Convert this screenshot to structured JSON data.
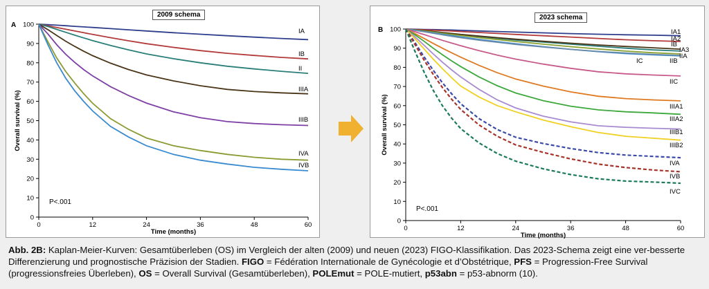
{
  "caption": {
    "label": "Abb. 2B:",
    "text_1": " Kaplan-Meier-Kurven: Gesamtüberleben (OS) im Vergleich der alten (2009) und neuen (2023) FIGO-Klassifikation. Das 2023-Schema zeigt eine ver-besserte Differenzierung und prognostische Präzision der Stadien. ",
    "abbr_figo": "FIGO",
    "text_2": " = Fédération Internationale de Gynécologie et d’Obstétrique, ",
    "abbr_pfs": "PFS",
    "text_3": " = Progression-Free Survival (progressionsfreies Überleben), ",
    "abbr_os": "OS",
    "text_4": " = Overall Survival (Gesamtüberleben), ",
    "abbr_polemut": "POLEmut",
    "text_5": " = POLE-mutiert, ",
    "abbr_p53abn": "p53abn",
    "text_6": " = p53-abnorm (10)."
  },
  "arrow": {
    "icon": "right-arrow-icon",
    "color": "#f0b030"
  },
  "chart_data": [
    {
      "type": "line",
      "panel_letter": "A",
      "title": "2009 schema",
      "xlabel": "Time (months)",
      "ylabel": "Overall survival (%)",
      "xlim": [
        0,
        60
      ],
      "ylim": [
        0,
        100
      ],
      "xticks": [
        0,
        12,
        24,
        36,
        48,
        60
      ],
      "yticks": [
        0,
        10,
        20,
        30,
        40,
        50,
        60,
        70,
        80,
        90,
        100
      ],
      "annotation": "P<.001",
      "x": [
        0,
        2,
        4,
        6,
        8,
        10,
        12,
        16,
        20,
        24,
        30,
        36,
        42,
        48,
        54,
        60
      ],
      "series": [
        {
          "name": "IA",
          "color": "#2e3e8c",
          "dashed": false,
          "values": [
            100,
            99.8,
            99.5,
            99.2,
            98.9,
            98.6,
            98.3,
            97.7,
            97.1,
            96.5,
            95.6,
            94.8,
            94.0,
            93.3,
            92.6,
            92.0
          ]
        },
        {
          "name": "IB",
          "color": "#b23a3a",
          "dashed": false,
          "values": [
            100,
            99.2,
            98.3,
            97.4,
            96.5,
            95.6,
            94.7,
            93.0,
            91.4,
            89.9,
            88.0,
            86.3,
            84.9,
            83.8,
            82.8,
            82.0
          ]
        },
        {
          "name": "II",
          "color": "#2a7e78",
          "dashed": false,
          "values": [
            100,
            98.8,
            97.3,
            95.8,
            94.3,
            92.9,
            91.5,
            89.0,
            86.7,
            84.6,
            82.1,
            80.0,
            78.2,
            76.8,
            75.6,
            74.5
          ]
        },
        {
          "name": "IIIA",
          "color": "#4a3418",
          "dashed": false,
          "values": [
            100,
            97.2,
            94.2,
            91.2,
            88.5,
            86.0,
            83.7,
            79.8,
            76.5,
            73.7,
            70.6,
            68.1,
            66.2,
            65.1,
            64.4,
            63.9
          ]
        },
        {
          "name": "IIIB",
          "color": "#7e3fa6",
          "dashed": false,
          "values": [
            100,
            95.0,
            89.4,
            84.4,
            80.2,
            76.5,
            73.2,
            67.6,
            63.0,
            59.1,
            54.6,
            51.5,
            49.5,
            48.5,
            47.9,
            47.5
          ]
        },
        {
          "name": "IVA",
          "color": "#8c9a32",
          "dashed": false,
          "values": [
            100,
            91.0,
            82.5,
            75.5,
            69.5,
            64.0,
            59.0,
            51.0,
            45.5,
            41.0,
            37.0,
            34.5,
            32.5,
            31.0,
            30.0,
            29.5
          ]
        },
        {
          "name": "IVB",
          "color": "#3a8ad0",
          "dashed": false,
          "values": [
            100,
            89.5,
            80.0,
            72.0,
            65.5,
            60.0,
            55.0,
            47.0,
            41.5,
            37.0,
            32.5,
            29.5,
            27.5,
            25.8,
            24.8,
            24.0
          ]
        }
      ]
    },
    {
      "type": "line",
      "panel_letter": "B",
      "title": "2023 schema",
      "xlabel": "Time (months)",
      "ylabel": "Overall survival (%)",
      "xlim": [
        0,
        60
      ],
      "ylim": [
        0,
        100
      ],
      "xticks": [
        0,
        12,
        24,
        36,
        48,
        60
      ],
      "yticks": [
        0,
        10,
        20,
        30,
        40,
        50,
        60,
        70,
        80,
        90,
        100
      ],
      "annotation": "P<.001",
      "x": [
        0,
        2,
        4,
        6,
        8,
        10,
        12,
        16,
        20,
        24,
        30,
        36,
        42,
        48,
        54,
        60
      ],
      "series": [
        {
          "name": "IA1",
          "color": "#2e3e8c",
          "dashed": false,
          "values": [
            100,
            99.9,
            99.8,
            99.7,
            99.6,
            99.5,
            99.3,
            99.0,
            98.7,
            98.4,
            98.0,
            97.6,
            97.3,
            97.0,
            96.8,
            96.5
          ]
        },
        {
          "name": "IA2",
          "color": "#b23a3a",
          "dashed": false,
          "values": [
            100,
            99.8,
            99.6,
            99.4,
            99.2,
            99.0,
            98.7,
            98.2,
            97.7,
            97.2,
            96.5,
            95.8,
            95.1,
            94.4,
            93.9,
            93.5
          ]
        },
        {
          "name": "IA3",
          "color": "#2a7e78",
          "dashed": false,
          "values": [
            100,
            99.6,
            99.1,
            98.6,
            98.1,
            97.6,
            97.1,
            96.1,
            95.2,
            94.3,
            93.2,
            92.1,
            91.0,
            90.0,
            89.1,
            88.5
          ]
        },
        {
          "name": "IB",
          "color": "#4a3418",
          "dashed": false,
          "values": [
            100,
            99.6,
            99.2,
            98.7,
            98.2,
            97.7,
            97.2,
            96.3,
            95.5,
            94.7,
            93.6,
            92.6,
            91.7,
            90.9,
            90.2,
            89.5
          ]
        },
        {
          "name": "IIA",
          "color": "#8aa030",
          "dashed": false,
          "values": [
            100,
            99.5,
            99.0,
            98.4,
            97.8,
            97.2,
            96.6,
            95.5,
            94.5,
            93.5,
            92.1,
            90.8,
            89.6,
            88.5,
            87.6,
            87.0
          ]
        },
        {
          "name": "IIB",
          "color": "#3a8ad0",
          "dashed": false,
          "values": [
            100,
            99.4,
            98.7,
            98.0,
            97.3,
            96.6,
            95.9,
            94.6,
            93.4,
            92.3,
            90.8,
            89.4,
            88.2,
            87.2,
            86.5,
            86.0
          ]
        },
        {
          "name": "IC",
          "color": "#6a8aa8",
          "dashed": false,
          "values": [
            100,
            99.3,
            98.6,
            97.8,
            97.0,
            96.2,
            95.5,
            94.2,
            93.1,
            92.0,
            90.6,
            89.4,
            88.3,
            87.5,
            86.8,
            86.2
          ]
        },
        {
          "name": "IIC",
          "color": "#c85a8a",
          "dashed": false,
          "values": [
            100,
            98.6,
            97.1,
            95.6,
            94.1,
            92.7,
            91.3,
            88.7,
            86.4,
            84.3,
            81.7,
            79.5,
            77.7,
            76.6,
            76.0,
            75.5
          ]
        },
        {
          "name": "IIIA1",
          "color": "#e07a20",
          "dashed": false,
          "values": [
            100,
            97.6,
            95.1,
            92.5,
            90.0,
            87.6,
            85.3,
            81.0,
            77.2,
            73.9,
            70.2,
            67.2,
            64.9,
            63.7,
            63.0,
            62.5
          ]
        },
        {
          "name": "IIIA2",
          "color": "#3aa83a",
          "dashed": false,
          "values": [
            100,
            97.0,
            93.6,
            90.0,
            86.6,
            83.4,
            80.4,
            75.0,
            70.4,
            66.6,
            62.6,
            59.7,
            57.8,
            56.8,
            56.2,
            55.5
          ]
        },
        {
          "name": "IIIB1",
          "color": "#a88ad0",
          "dashed": false,
          "values": [
            100,
            96.0,
            91.5,
            87.0,
            82.7,
            78.7,
            75.0,
            68.5,
            63.0,
            58.8,
            54.5,
            51.5,
            49.5,
            48.7,
            48.2,
            47.8
          ]
        },
        {
          "name": "IIIB2",
          "color": "#f0d020",
          "dashed": false,
          "values": [
            100,
            95.0,
            89.6,
            84.3,
            79.3,
            74.6,
            70.2,
            64.5,
            60.0,
            56.8,
            52.5,
            49.0,
            46.0,
            44.0,
            43.0,
            42.0
          ]
        },
        {
          "name": "IVA",
          "color": "#3a4aa8",
          "dashed": true,
          "values": [
            100,
            93.0,
            85.5,
            78.5,
            72.0,
            66.2,
            61.0,
            53.2,
            47.5,
            43.5,
            40.2,
            37.6,
            35.5,
            34.2,
            33.5,
            32.8
          ]
        },
        {
          "name": "IVB",
          "color": "#a8332a",
          "dashed": true,
          "values": [
            100,
            92.0,
            83.8,
            76.3,
            69.5,
            63.4,
            58.0,
            49.9,
            44.0,
            39.5,
            35.6,
            32.2,
            29.5,
            27.7,
            26.4,
            25.5
          ]
        },
        {
          "name": "IVC",
          "color": "#1a7a5a",
          "dashed": true,
          "values": [
            100,
            88.5,
            77.5,
            68.0,
            60.0,
            53.5,
            48.0,
            40.5,
            35.0,
            31.0,
            27.0,
            24.0,
            21.8,
            20.6,
            20.1,
            19.5
          ]
        }
      ]
    }
  ]
}
